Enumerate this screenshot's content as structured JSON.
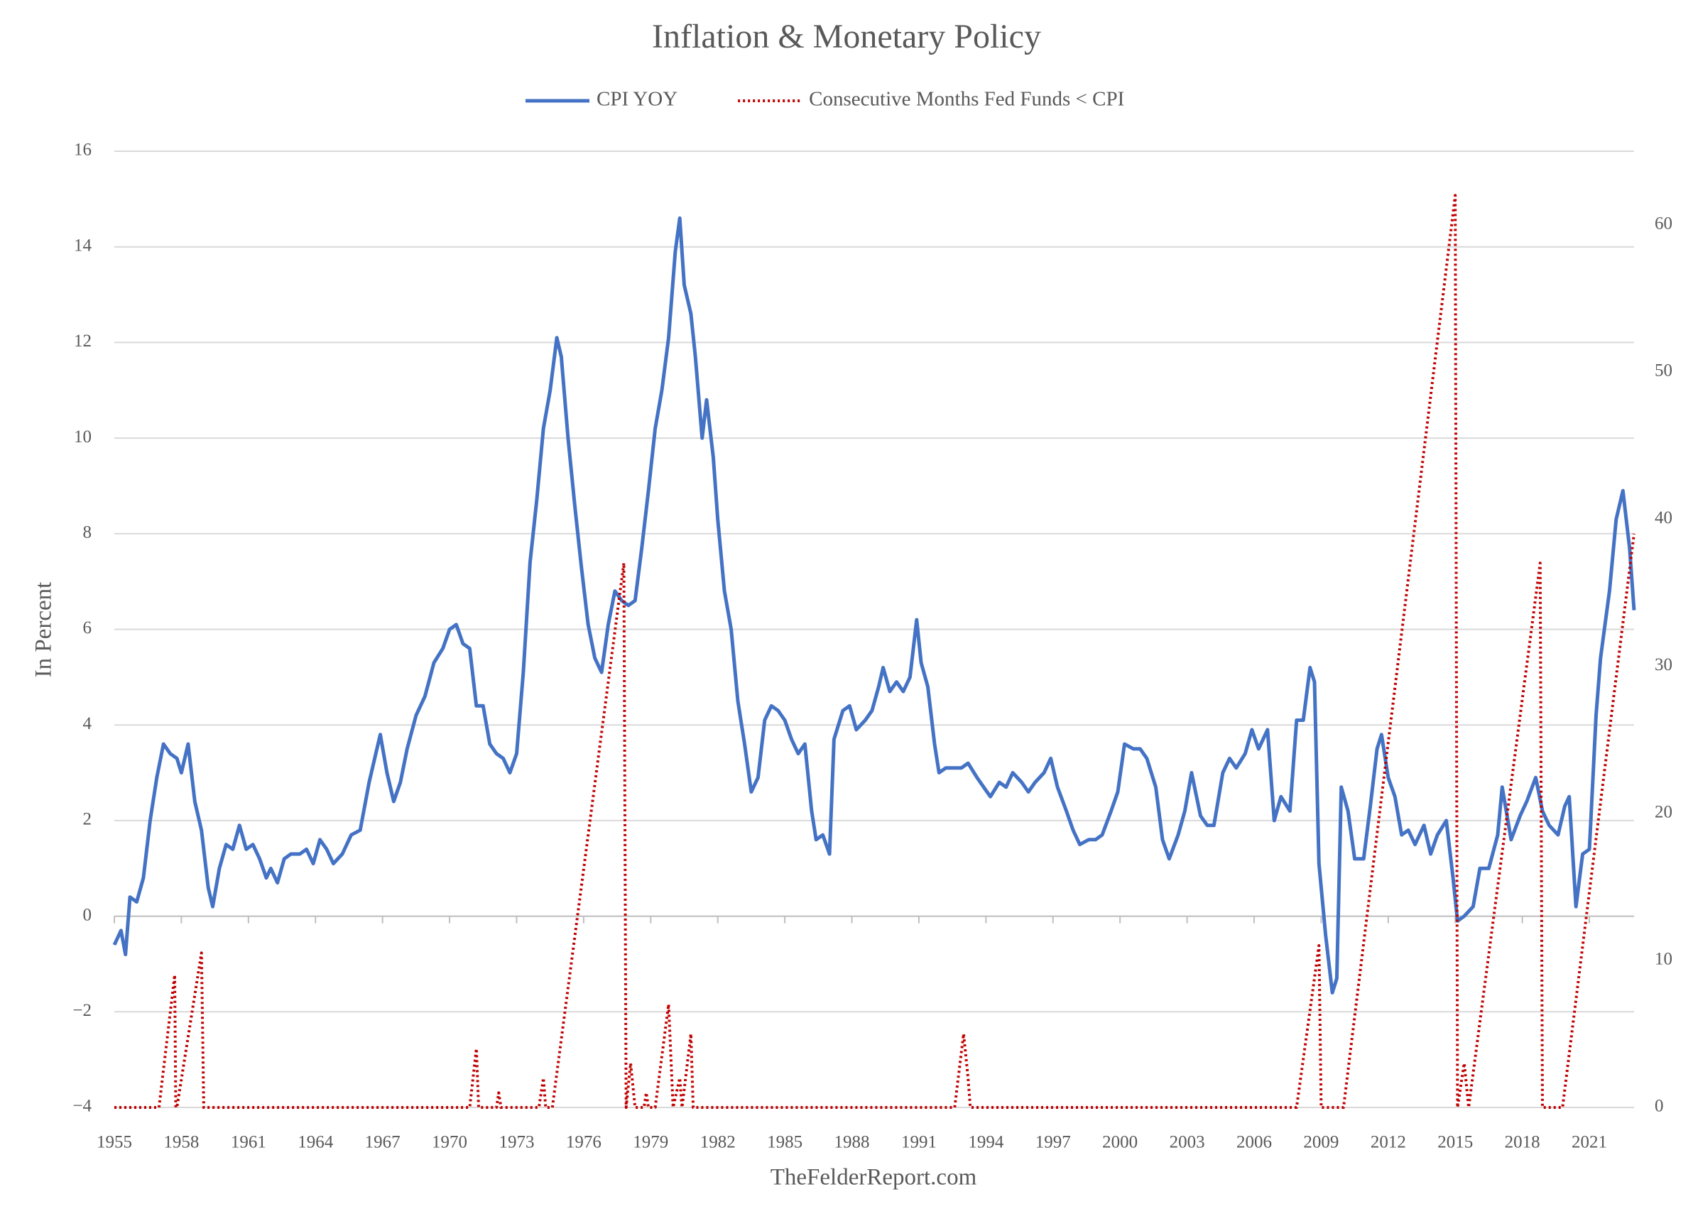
{
  "chart_data": {
    "type": "line",
    "title": "Inflation & Monetary Policy",
    "y_label": "In Percent",
    "source": "TheFelderReport.com",
    "legend": "top",
    "grid": true,
    "xlim": [
      1955,
      2023
    ],
    "xticks": [
      1955,
      1958,
      1961,
      1964,
      1967,
      1970,
      1973,
      1976,
      1979,
      1982,
      1985,
      1988,
      1991,
      1994,
      1997,
      2000,
      2003,
      2006,
      2009,
      2012,
      2015,
      2018,
      2021
    ],
    "ylim": [
      -4,
      16
    ],
    "yticks": [
      {
        "value": -4,
        "label": "−4"
      },
      {
        "value": -2,
        "label": "−2"
      },
      0,
      2,
      4,
      6,
      8,
      10,
      12,
      14,
      16
    ],
    "y2lim": [
      0,
      65
    ],
    "y2ticks": [
      0,
      10,
      20,
      30,
      40,
      50,
      60
    ],
    "series": [
      {
        "name": "CPI YOY",
        "color": "#4472c4",
        "style": "solid",
        "x": [
          1955.0,
          1955.3,
          1955.5,
          1955.7,
          1956.0,
          1956.3,
          1956.6,
          1956.9,
          1957.2,
          1957.5,
          1957.8,
          1958.0,
          1958.3,
          1958.6,
          1958.9,
          1959.2,
          1959.4,
          1959.7,
          1960.0,
          1960.3,
          1960.6,
          1960.9,
          1961.2,
          1961.5,
          1961.8,
          1962.0,
          1962.3,
          1962.6,
          1962.9,
          1963.3,
          1963.6,
          1963.9,
          1964.2,
          1964.5,
          1964.8,
          1965.2,
          1965.6,
          1966.0,
          1966.4,
          1966.7,
          1966.9,
          1967.2,
          1967.5,
          1967.8,
          1968.1,
          1968.5,
          1968.9,
          1969.3,
          1969.7,
          1970.0,
          1970.3,
          1970.6,
          1970.9,
          1971.2,
          1971.5,
          1971.8,
          1972.1,
          1972.4,
          1972.7,
          1973.0,
          1973.3,
          1973.6,
          1973.9,
          1974.2,
          1974.5,
          1974.8,
          1975.0,
          1975.3,
          1975.6,
          1975.9,
          1976.2,
          1976.5,
          1976.8,
          1977.1,
          1977.4,
          1977.7,
          1978.0,
          1978.3,
          1978.6,
          1978.9,
          1979.2,
          1979.5,
          1979.8,
          1980.1,
          1980.3,
          1980.5,
          1980.8,
          1981.0,
          1981.3,
          1981.5,
          1981.8,
          1982.0,
          1982.3,
          1982.6,
          1982.9,
          1983.2,
          1983.5,
          1983.8,
          1984.1,
          1984.4,
          1984.7,
          1985.0,
          1985.3,
          1985.6,
          1985.9,
          1986.2,
          1986.4,
          1986.7,
          1987.0,
          1987.2,
          1987.6,
          1987.9,
          1988.2,
          1988.6,
          1988.9,
          1989.2,
          1989.4,
          1989.7,
          1990.0,
          1990.3,
          1990.6,
          1990.9,
          1991.1,
          1991.4,
          1991.7,
          1991.9,
          1992.2,
          1992.6,
          1992.9,
          1993.2,
          1993.6,
          1993.9,
          1994.2,
          1994.6,
          1994.9,
          1995.2,
          1995.6,
          1995.9,
          1996.2,
          1996.6,
          1996.9,
          1997.2,
          1997.6,
          1997.9,
          1998.2,
          1998.6,
          1998.9,
          1999.2,
          1999.6,
          1999.9,
          2000.2,
          2000.6,
          2000.9,
          2001.2,
          2001.6,
          2001.9,
          2002.2,
          2002.6,
          2002.9,
          2003.2,
          2003.6,
          2003.9,
          2004.2,
          2004.6,
          2004.9,
          2005.2,
          2005.6,
          2005.9,
          2006.2,
          2006.6,
          2006.9,
          2007.2,
          2007.6,
          2007.9,
          2008.2,
          2008.5,
          2008.7,
          2008.9,
          2009.2,
          2009.5,
          2009.7,
          2009.9,
          2010.2,
          2010.5,
          2010.9,
          2011.2,
          2011.5,
          2011.7,
          2012.0,
          2012.3,
          2012.6,
          2012.9,
          2013.2,
          2013.6,
          2013.9,
          2014.2,
          2014.6,
          2014.9,
          2015.1,
          2015.4,
          2015.8,
          2016.1,
          2016.5,
          2016.9,
          2017.1,
          2017.5,
          2017.9,
          2018.2,
          2018.6,
          2018.9,
          2019.2,
          2019.6,
          2019.9,
          2020.1,
          2020.4,
          2020.7,
          2021.0,
          2021.3,
          2021.5,
          2021.9,
          2022.2,
          2022.5,
          2022.8,
          2023.0
        ],
        "values": [
          -0.6,
          -0.3,
          -0.8,
          0.4,
          0.3,
          0.8,
          2.0,
          2.9,
          3.6,
          3.4,
          3.3,
          3.0,
          3.6,
          2.4,
          1.8,
          0.6,
          0.2,
          1.0,
          1.5,
          1.4,
          1.9,
          1.4,
          1.5,
          1.2,
          0.8,
          1.0,
          0.7,
          1.2,
          1.3,
          1.3,
          1.4,
          1.1,
          1.6,
          1.4,
          1.1,
          1.3,
          1.7,
          1.8,
          2.8,
          3.4,
          3.8,
          3.0,
          2.4,
          2.8,
          3.5,
          4.2,
          4.6,
          5.3,
          5.6,
          6.0,
          6.1,
          5.7,
          5.6,
          4.4,
          4.4,
          3.6,
          3.4,
          3.3,
          3.0,
          3.4,
          5.1,
          7.4,
          8.7,
          10.2,
          11.0,
          12.1,
          11.7,
          10.0,
          8.6,
          7.3,
          6.1,
          5.4,
          5.1,
          6.1,
          6.8,
          6.6,
          6.5,
          6.6,
          7.7,
          8.9,
          10.2,
          11.0,
          12.1,
          13.9,
          14.6,
          13.2,
          12.6,
          11.7,
          10.0,
          10.8,
          9.6,
          8.3,
          6.8,
          6.0,
          4.5,
          3.6,
          2.6,
          2.9,
          4.1,
          4.4,
          4.3,
          4.1,
          3.7,
          3.4,
          3.6,
          2.2,
          1.6,
          1.7,
          1.3,
          3.7,
          4.3,
          4.4,
          3.9,
          4.1,
          4.3,
          4.8,
          5.2,
          4.7,
          4.9,
          4.7,
          5.0,
          6.2,
          5.3,
          4.8,
          3.6,
          3.0,
          3.1,
          3.1,
          3.1,
          3.2,
          2.9,
          2.7,
          2.5,
          2.8,
          2.7,
          3.0,
          2.8,
          2.6,
          2.8,
          3.0,
          3.3,
          2.7,
          2.2,
          1.8,
          1.5,
          1.6,
          1.6,
          1.7,
          2.2,
          2.6,
          3.6,
          3.5,
          3.5,
          3.3,
          2.7,
          1.6,
          1.2,
          1.7,
          2.2,
          3.0,
          2.1,
          1.9,
          1.9,
          3.0,
          3.3,
          3.1,
          3.4,
          3.9,
          3.5,
          3.9,
          2.0,
          2.5,
          2.2,
          4.1,
          4.1,
          5.2,
          4.9,
          1.1,
          -0.4,
          -1.6,
          -1.3,
          2.7,
          2.2,
          1.2,
          1.2,
          2.3,
          3.5,
          3.8,
          2.9,
          2.5,
          1.7,
          1.8,
          1.5,
          1.9,
          1.3,
          1.7,
          2.0,
          0.8,
          -0.1,
          0.0,
          0.2,
          1.0,
          1.0,
          1.7,
          2.7,
          1.6,
          2.1,
          2.4,
          2.9,
          2.2,
          1.9,
          1.7,
          2.3,
          2.5,
          0.2,
          1.3,
          1.4,
          4.2,
          5.4,
          6.8,
          8.3,
          8.9,
          7.7,
          6.4
        ]
      },
      {
        "name": "Consecutive Months Fed Funds < CPI",
        "color": "#c00000",
        "style": "dotted",
        "axis": "y2",
        "x": [
          1955.0,
          1957.0,
          1957.7,
          1957.75,
          1957.8,
          1958.9,
          1959.0,
          1970.9,
          1971.2,
          1971.3,
          1972.1,
          1972.2,
          1972.3,
          1974.0,
          1974.2,
          1974.3,
          1974.6,
          1977.8,
          1977.9,
          1978.1,
          1978.3,
          1978.7,
          1978.8,
          1978.9,
          1979.2,
          1979.8,
          1980.0,
          1980.3,
          1980.4,
          1980.8,
          1980.9,
          1992.6,
          1993.0,
          1993.2,
          1993.3,
          2007.9,
          2008.9,
          2009.0,
          2010.0,
          2015.0,
          2015.1,
          2015.4,
          2015.6,
          2018.8,
          2018.9,
          2019.8,
          2023.0
        ],
        "values": [
          0,
          0,
          9,
          0,
          0,
          10.5,
          0,
          0,
          4,
          0,
          0,
          1,
          0,
          0,
          2,
          0,
          0,
          37,
          0,
          3,
          0,
          0,
          1,
          0,
          0,
          7,
          0,
          2,
          0,
          5,
          0,
          0,
          5,
          2,
          0,
          0,
          11,
          0,
          0,
          62,
          0,
          3,
          0,
          37,
          0,
          0,
          39
        ]
      }
    ]
  }
}
